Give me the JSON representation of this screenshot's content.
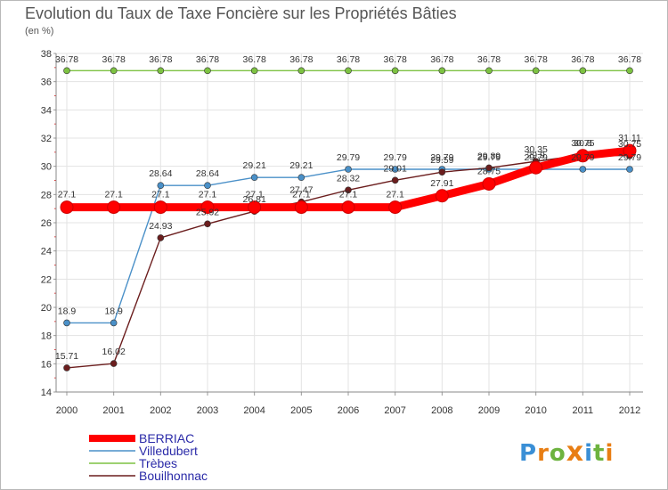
{
  "title": "Evolution du Taux de Taxe Foncière sur les Propriétés Bâties",
  "subtitle": "(en %)",
  "logo": {
    "letters": [
      "P",
      "r",
      "o",
      "x",
      "i",
      "t",
      "i"
    ],
    "colors": [
      "#3a8fd6",
      "#e87e14",
      "#6db33f",
      "#e87e14",
      "#3a8fd6",
      "#6db33f",
      "#e87e14"
    ]
  },
  "chart_data": {
    "type": "line",
    "title": "Evolution du Taux de Taxe Foncière sur les Propriétés Bâties",
    "ylabel": "(en %)",
    "xlabel": "",
    "ylim": [
      14,
      38
    ],
    "yticks": [
      14,
      16,
      18,
      20,
      22,
      24,
      26,
      28,
      30,
      32,
      34,
      36,
      38
    ],
    "categories": [
      "2000",
      "2001",
      "2002",
      "2003",
      "2004",
      "2005",
      "2006",
      "2007",
      "2008",
      "2009",
      "2010",
      "2011",
      "2012"
    ],
    "grid": true,
    "legend_position": "bottom-left",
    "series": [
      {
        "name": "BERRIAC",
        "color": "#ff0000",
        "values": [
          27.1,
          27.1,
          27.1,
          27.1,
          27.1,
          27.1,
          27.1,
          27.1,
          27.91,
          28.75,
          29.9,
          30.75,
          31.11
        ],
        "labels": [
          "27.1",
          "27.1",
          "27.1",
          "27.1",
          "27.1",
          "27.1",
          "27.1",
          "27.1",
          "27.91",
          "28.75",
          "29.9",
          "30.75",
          "31.11"
        ]
      },
      {
        "name": "Villedubert",
        "color": "#4a90c8",
        "values": [
          18.9,
          18.9,
          28.64,
          28.64,
          29.21,
          29.21,
          29.79,
          29.79,
          29.79,
          29.79,
          29.79,
          29.79,
          29.79
        ],
        "labels": [
          "18.9",
          "18.9",
          "28.64",
          "28.64",
          "29.21",
          "29.21",
          "29.79",
          "29.79",
          "29.79",
          "29.79",
          "29.79",
          "29.79",
          "29.79"
        ]
      },
      {
        "name": "Trèbes",
        "color": "#7dc242",
        "values": [
          36.78,
          36.78,
          36.78,
          36.78,
          36.78,
          36.78,
          36.78,
          36.78,
          36.78,
          36.78,
          36.78,
          36.78,
          36.78
        ],
        "labels": [
          "36.78",
          "36.78",
          "36.78",
          "36.78",
          "36.78",
          "36.78",
          "36.78",
          "36.78",
          "36.78",
          "36.78",
          "36.78",
          "36.78",
          "36.78"
        ]
      },
      {
        "name": "Bouilhonnac",
        "color": "#6b1d1d",
        "values": [
          15.71,
          16.02,
          24.93,
          25.92,
          26.81,
          27.47,
          28.32,
          29.01,
          29.59,
          29.89,
          30.35,
          30.8,
          30.75
        ],
        "labels": [
          "15.71",
          "16.02",
          "24.93",
          "25.92",
          "26.81",
          "27.47",
          "28.32",
          "29.01",
          "29.59",
          "29.89",
          "30.35",
          "30.8",
          "30.75"
        ]
      }
    ]
  }
}
